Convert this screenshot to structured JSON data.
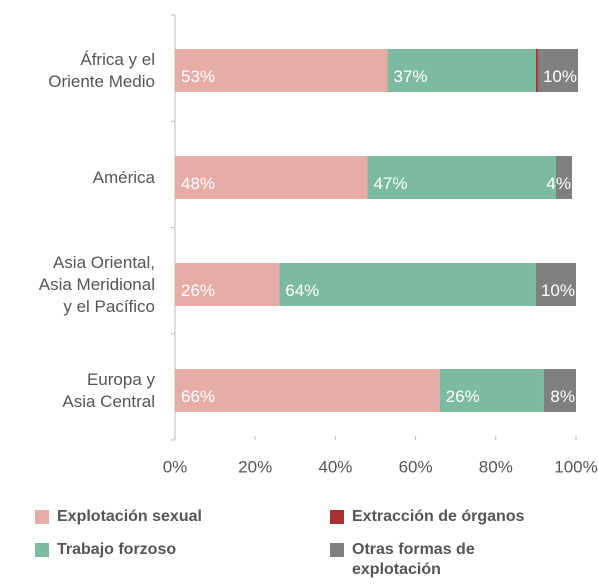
{
  "chart_data": {
    "type": "bar",
    "orientation": "horizontal",
    "stacked": true,
    "categories": [
      "África y el\nOriente Medio",
      "América",
      "Asia Oriental,\nAsia Meridional\ny el Pacífico",
      "Europa y\nAsia Central"
    ],
    "series": [
      {
        "name": "Explotación sexual",
        "color": "#e6aca6",
        "values": [
          53,
          48,
          26,
          66
        ],
        "value_labels": [
          "53%",
          "48%",
          "26%",
          "66%"
        ]
      },
      {
        "name": "Trabajo forzoso",
        "color": "#7dbba0",
        "values": [
          37,
          47,
          64,
          26
        ],
        "value_labels": [
          "37%",
          "47%",
          "64%",
          "26%"
        ]
      },
      {
        "name": "Extracción de órganos",
        "color": "#a83232",
        "values": [
          0.5,
          0,
          0,
          0
        ]
      },
      {
        "name": "Otras formas de\nexplotación",
        "color": "#808080",
        "values": [
          10,
          4,
          10,
          8
        ],
        "value_labels": [
          "10%",
          "4%",
          "10%",
          "8%"
        ]
      }
    ],
    "xlim": [
      0,
      100
    ],
    "xticks": [
      {
        "value": 0,
        "label": "0%"
      },
      {
        "value": 20,
        "label": "20%"
      },
      {
        "value": 40,
        "label": "40%"
      },
      {
        "value": 60,
        "label": "60%"
      },
      {
        "value": 80,
        "label": "80%"
      },
      {
        "value": 100,
        "label": "100%"
      }
    ]
  }
}
